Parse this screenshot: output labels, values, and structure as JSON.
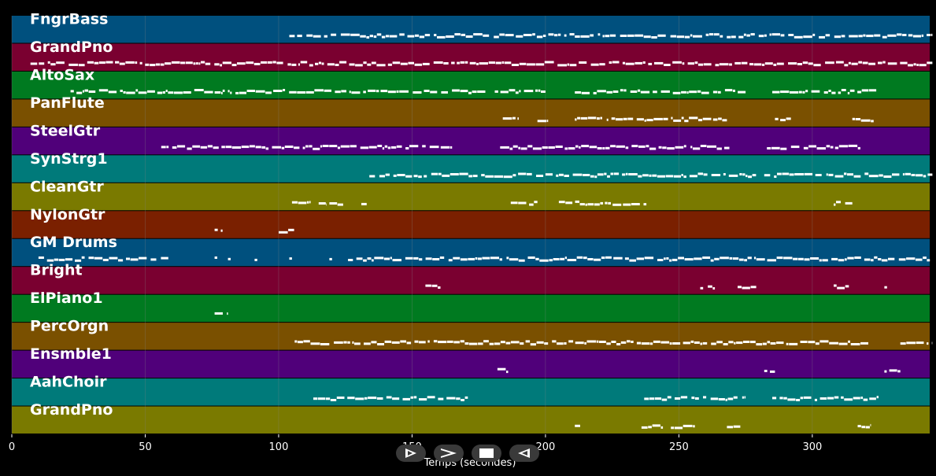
{
  "colors": {
    "background": "#000000",
    "note": "#ffffff",
    "grid": "#888888",
    "palette": [
      "#00507e",
      "#7a0030",
      "#007a20",
      "#7a5000",
      "#50007a",
      "#007a7a",
      "#7a7a00",
      "#7a2000"
    ]
  },
  "chart_data": {
    "type": "piano-roll",
    "xlabel": "Temps (secondes)",
    "xlim": [
      0,
      344
    ],
    "xticks": [
      0,
      50,
      100,
      150,
      200,
      250,
      300
    ],
    "tracks": [
      {
        "name": "FngrBass",
        "color": "#00507e",
        "segments": [
          [
            104,
            345
          ]
        ]
      },
      {
        "name": "GrandPno",
        "color": "#7a0030",
        "segments": [
          [
            7,
            345
          ]
        ]
      },
      {
        "name": "AltoSax",
        "color": "#007a20",
        "segments": [
          [
            22,
            79
          ],
          [
            79,
            178
          ],
          [
            181,
            200
          ],
          [
            211,
            275
          ],
          [
            285,
            325
          ]
        ]
      },
      {
        "name": "PanFlute",
        "color": "#7a5000",
        "segments": [
          [
            184,
            190
          ],
          [
            197,
            201
          ],
          [
            211,
            268
          ],
          [
            286,
            292
          ],
          [
            315,
            323
          ]
        ]
      },
      {
        "name": "SteelGtr",
        "color": "#50007a",
        "segments": [
          [
            56,
            165
          ],
          [
            183,
            269
          ],
          [
            283,
            318
          ]
        ]
      },
      {
        "name": "SynStrg1",
        "color": "#007a7a",
        "segments": [
          [
            134,
            280
          ],
          [
            282,
            345
          ]
        ]
      },
      {
        "name": "CleanGtr",
        "color": "#7a7a00",
        "segments": [
          [
            105,
            112
          ],
          [
            115,
            118
          ],
          [
            119,
            125
          ],
          [
            131,
            133
          ],
          [
            187,
            197
          ],
          [
            205,
            238
          ],
          [
            308,
            315
          ]
        ]
      },
      {
        "name": "NylonGtr",
        "color": "#7a2000",
        "segments": [
          [
            76,
            79
          ],
          [
            100,
            106
          ]
        ]
      },
      {
        "name": "GM Drums",
        "color": "#00507e",
        "segments": [
          [
            10,
            60
          ],
          [
            76,
            77
          ],
          [
            81,
            82
          ],
          [
            91,
            92
          ],
          [
            104,
            105
          ],
          [
            119,
            120
          ],
          [
            126,
            345
          ]
        ]
      },
      {
        "name": "Bright",
        "color": "#7a0030",
        "segments": [
          [
            155,
            161
          ],
          [
            258,
            264
          ],
          [
            272,
            279
          ],
          [
            308,
            314
          ],
          [
            327,
            328
          ]
        ]
      },
      {
        "name": "ElPiano1",
        "color": "#007a20",
        "segments": [
          [
            76,
            81
          ]
        ]
      },
      {
        "name": "PercOrgn",
        "color": "#7a5000",
        "segments": [
          [
            106,
            321
          ],
          [
            333,
            345
          ]
        ]
      },
      {
        "name": "Ensmble1",
        "color": "#50007a",
        "segments": [
          [
            182,
            186
          ],
          [
            282,
            286
          ],
          [
            327,
            333
          ]
        ]
      },
      {
        "name": "AahChoir",
        "color": "#007a7a",
        "segments": [
          [
            113,
            171
          ],
          [
            237,
            275
          ],
          [
            285,
            325
          ]
        ]
      },
      {
        "name": "GrandPno",
        "color": "#7a7a00",
        "segments": [
          [
            211,
            213
          ],
          [
            236,
            244
          ],
          [
            247,
            256
          ],
          [
            268,
            273
          ],
          [
            317,
            322
          ]
        ]
      }
    ]
  },
  "controls": {
    "play_icon": "play-icon",
    "forward_icon": "forward-icon",
    "stop_icon": "stop-icon",
    "back_icon": "back-icon"
  }
}
